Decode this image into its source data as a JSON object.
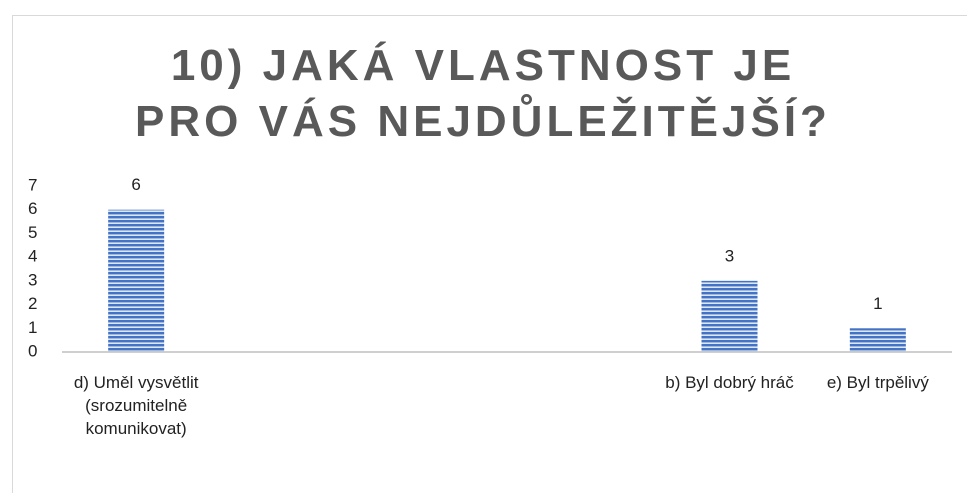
{
  "chart_data": {
    "type": "bar",
    "title": "10) JAKÁ VLASTNOST JE PRO VÁS NEJDŮLEŽITĚJŠÍ?",
    "categories": [
      "d) Uměl vysvětlit (srozumitelně komunikovat)",
      null,
      null,
      null,
      "b) Byl dobrý hráč",
      "e) Byl trpělivý"
    ],
    "values": [
      6,
      null,
      null,
      null,
      3,
      1
    ],
    "color": "#4472c4",
    "ylim": [
      0,
      7
    ],
    "yticks": [
      0,
      1,
      2,
      3,
      4,
      5,
      6,
      7
    ],
    "grid": false
  }
}
